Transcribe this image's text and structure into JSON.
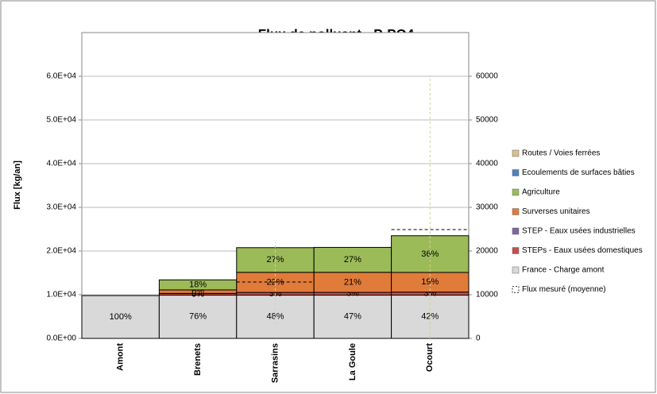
{
  "chart_data": {
    "type": "stacked_bar",
    "title": "Flux de polluant - P-PO4",
    "y_label": "Flux [kg/an]",
    "categories": [
      "Amont",
      "Brenets",
      "Sarrasins",
      "La Goule",
      "Ocourt"
    ],
    "series": [
      {
        "name": "Routes  / Voies ferrées",
        "color": "#d8c08e",
        "values": [
          0,
          0,
          0,
          0,
          0
        ],
        "percent_labels": [
          null,
          null,
          null,
          null,
          null
        ]
      },
      {
        "name": "Ecoulements de surfaces bâties",
        "color": "#4f81bd",
        "values": [
          0,
          0,
          0,
          0,
          0
        ],
        "percent_labels": [
          null,
          null,
          null,
          null,
          null
        ]
      },
      {
        "name": "Agriculture",
        "color": "#9bbb59",
        "values": [
          0,
          2300,
          5650,
          5700,
          8400
        ],
        "percent_labels": [
          null,
          "18%",
          "27%",
          "27%",
          "36%"
        ]
      },
      {
        "name": "Surverses unitaires",
        "color": "#e07b39",
        "values": [
          0,
          800,
          4600,
          4600,
          4500
        ],
        "percent_labels": [
          null,
          "6%",
          "22%",
          "21%",
          "19%"
        ]
      },
      {
        "name": "STEP - Eaux usées industrielles",
        "color": "#8064a2",
        "values": [
          0,
          0,
          0,
          0,
          0
        ],
        "percent_labels": [
          null,
          "0%",
          null,
          null,
          null
        ]
      },
      {
        "name": "STEPs - Eaux usées domestiques",
        "color": "#c0504d",
        "values": [
          0,
          400,
          620,
          630,
          700
        ],
        "percent_labels": [
          null,
          "3%",
          "3%",
          "3%",
          "3%"
        ]
      },
      {
        "name": "France - Charge amont",
        "color": "#d9d9d9",
        "values": [
          9800,
          9900,
          9900,
          9900,
          9900
        ],
        "percent_labels": [
          "100%",
          "76%",
          "48%",
          "47%",
          "42%"
        ]
      }
    ],
    "measured": {
      "name": "Flux mesuré (moyenne)",
      "values": [
        null,
        null,
        12900,
        null,
        24900
      ],
      "low": [
        null,
        null,
        3300,
        null,
        0
      ],
      "high": [
        null,
        null,
        22000,
        null,
        60200
      ]
    },
    "ylim": [
      0,
      70000
    ],
    "yticks": [
      {
        "value": 0,
        "label": "0.0E+00"
      },
      {
        "value": 10000,
        "label": "1.0E+04"
      },
      {
        "value": 20000,
        "label": "2.0E+04"
      },
      {
        "value": 30000,
        "label": "3.0E+04"
      },
      {
        "value": 40000,
        "label": "4.0E+04"
      },
      {
        "value": 50000,
        "label": "5.0E+04"
      },
      {
        "value": 60000,
        "label": "6.0E+04"
      }
    ],
    "y2lim": [
      0,
      70000
    ],
    "y2ticks": [
      0,
      10000,
      20000,
      30000,
      40000,
      50000,
      60000
    ],
    "grid": true,
    "legend": "right"
  }
}
